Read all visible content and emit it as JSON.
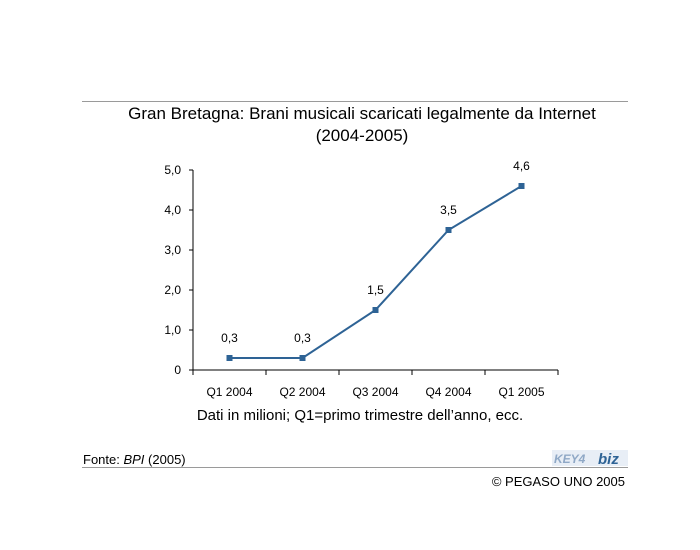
{
  "title": {
    "line1": "Gran Bretagna: Brani musicali scaricati legalmente da Internet",
    "line2": "(2004-2005)"
  },
  "chart_data": {
    "type": "line",
    "categories": [
      "Q1 2004",
      "Q2 2004",
      "Q3 2004",
      "Q4 2004",
      "Q1 2005"
    ],
    "series": [
      {
        "values": [
          0.3,
          0.3,
          1.5,
          3.5,
          4.6
        ],
        "labels": [
          "0,3",
          "0,3",
          "1,5",
          "3,5",
          "4,6"
        ]
      }
    ],
    "yticks": [
      0,
      1,
      2,
      3,
      4,
      5
    ],
    "ytick_labels": [
      "0",
      "1,0",
      "2,0",
      "3,0",
      "4,0",
      "5,0"
    ],
    "ylim": [
      0,
      5
    ],
    "grid": false,
    "line_color": "#2e6395"
  },
  "caption": "Dati in milioni; Q1=primo trimestre dell’anno, ecc.",
  "source": {
    "prefix": "Fonte: ",
    "name": "BPI",
    "suffix": " (2005)"
  },
  "logo": {
    "text_key": "KEY4",
    "text_biz": "biz"
  },
  "copyright": "© PEGASO UNO 2005"
}
